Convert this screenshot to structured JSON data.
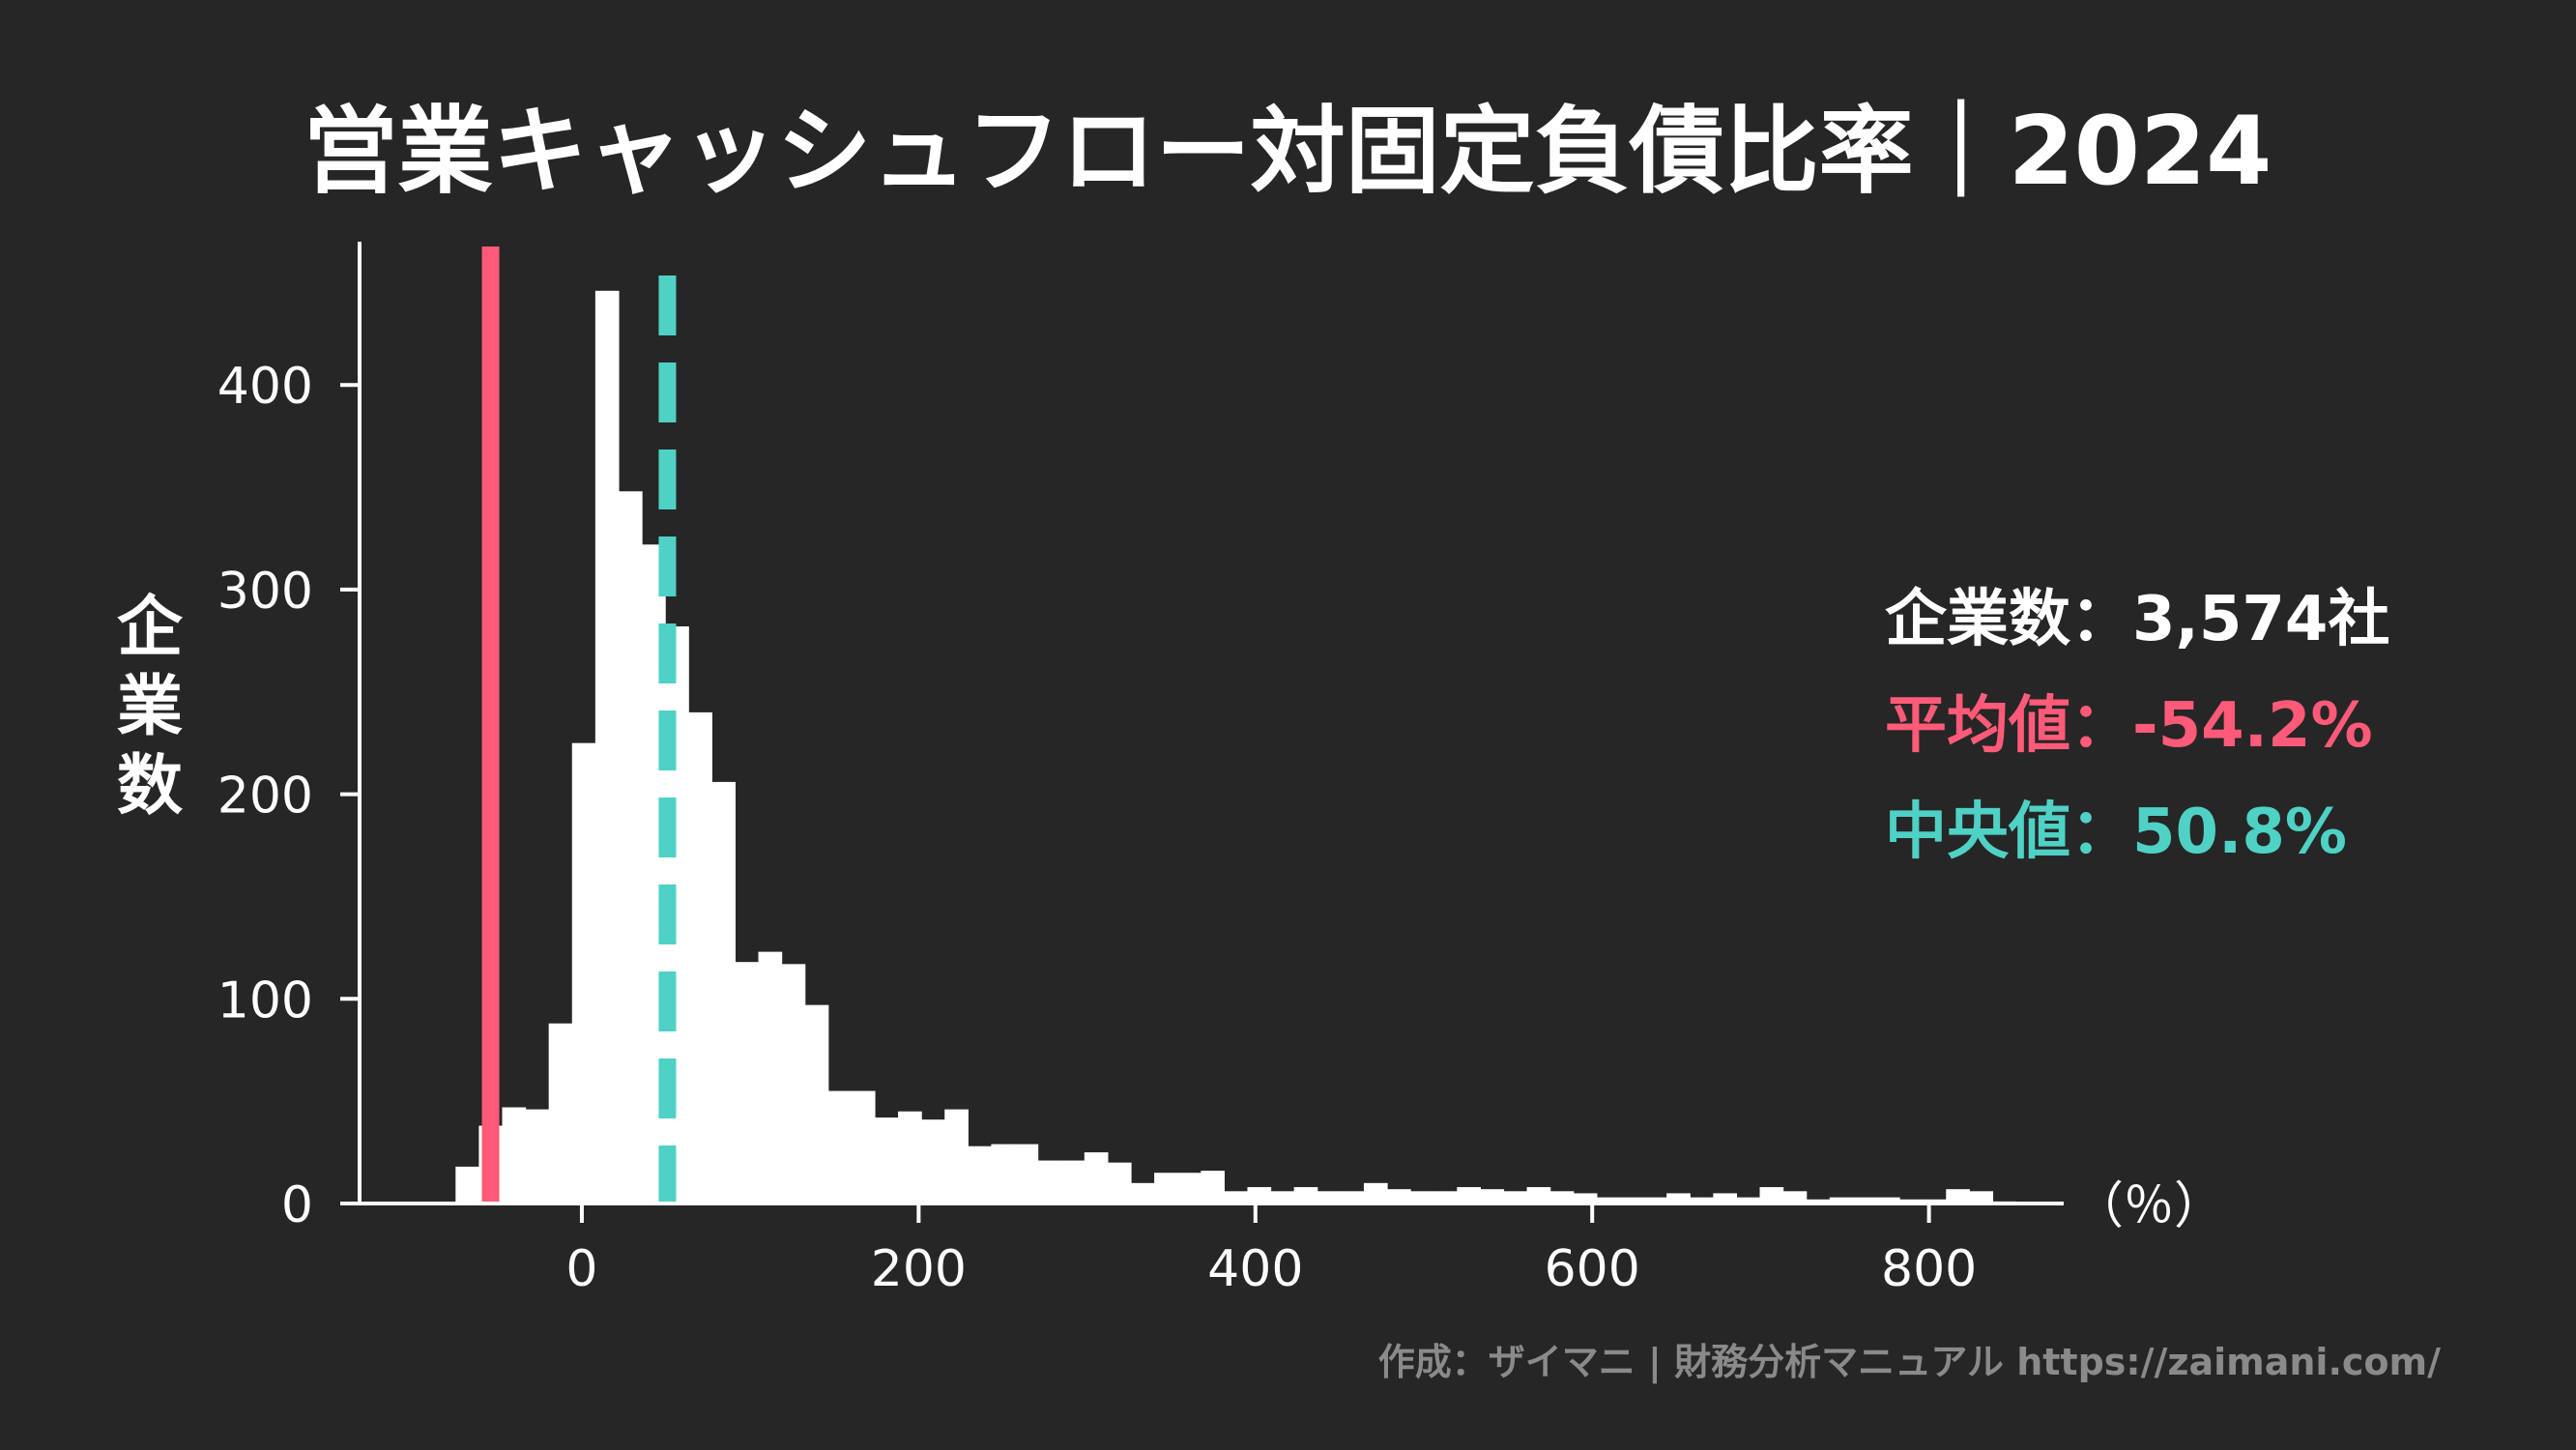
{
  "colors": {
    "background": "#262626",
    "bars": "#ffffff",
    "axis": "#ffffff",
    "mean": "#ff5a78",
    "median": "#4fd1c5",
    "credit": "#8a8a8a"
  },
  "chart_data": {
    "type": "bar",
    "title": "営業キャッシュフロー対固定負債比率｜2024",
    "xlabel": "（％）",
    "ylabel": "企業数",
    "x_unit_label": "（％）",
    "xlim": [
      -132,
      880
    ],
    "ylim": [
      0,
      470
    ],
    "xticks": [
      0,
      200,
      400,
      600,
      800
    ],
    "yticks": [
      0,
      100,
      200,
      300,
      400
    ],
    "bin_start": -75,
    "bin_width": 13.83,
    "values": [
      18,
      38,
      47,
      46,
      88,
      225,
      446,
      348,
      322,
      282,
      240,
      206,
      118,
      123,
      117,
      97,
      55,
      55,
      42,
      45,
      41,
      46,
      28,
      29,
      29,
      21,
      21,
      25,
      20,
      10,
      15,
      15,
      16,
      6,
      8,
      6,
      8,
      6,
      6,
      10,
      7,
      6,
      6,
      8,
      7,
      6,
      8,
      6,
      5,
      3,
      3,
      3,
      5,
      3,
      5,
      3,
      8,
      6,
      2,
      3,
      3,
      3,
      2,
      2,
      7,
      6,
      1
    ],
    "mean": -54.2,
    "median": 50.8,
    "stats": {
      "count_label": "企業数",
      "count_value": "3,574社",
      "mean_label": "平均値",
      "mean_value": "-54.2%",
      "median_label": "中央値",
      "median_value": "50.8%",
      "separator": "："
    }
  },
  "credit": "作成：ザイマニ | 財務分析マニュアル https://zaimani.com/"
}
